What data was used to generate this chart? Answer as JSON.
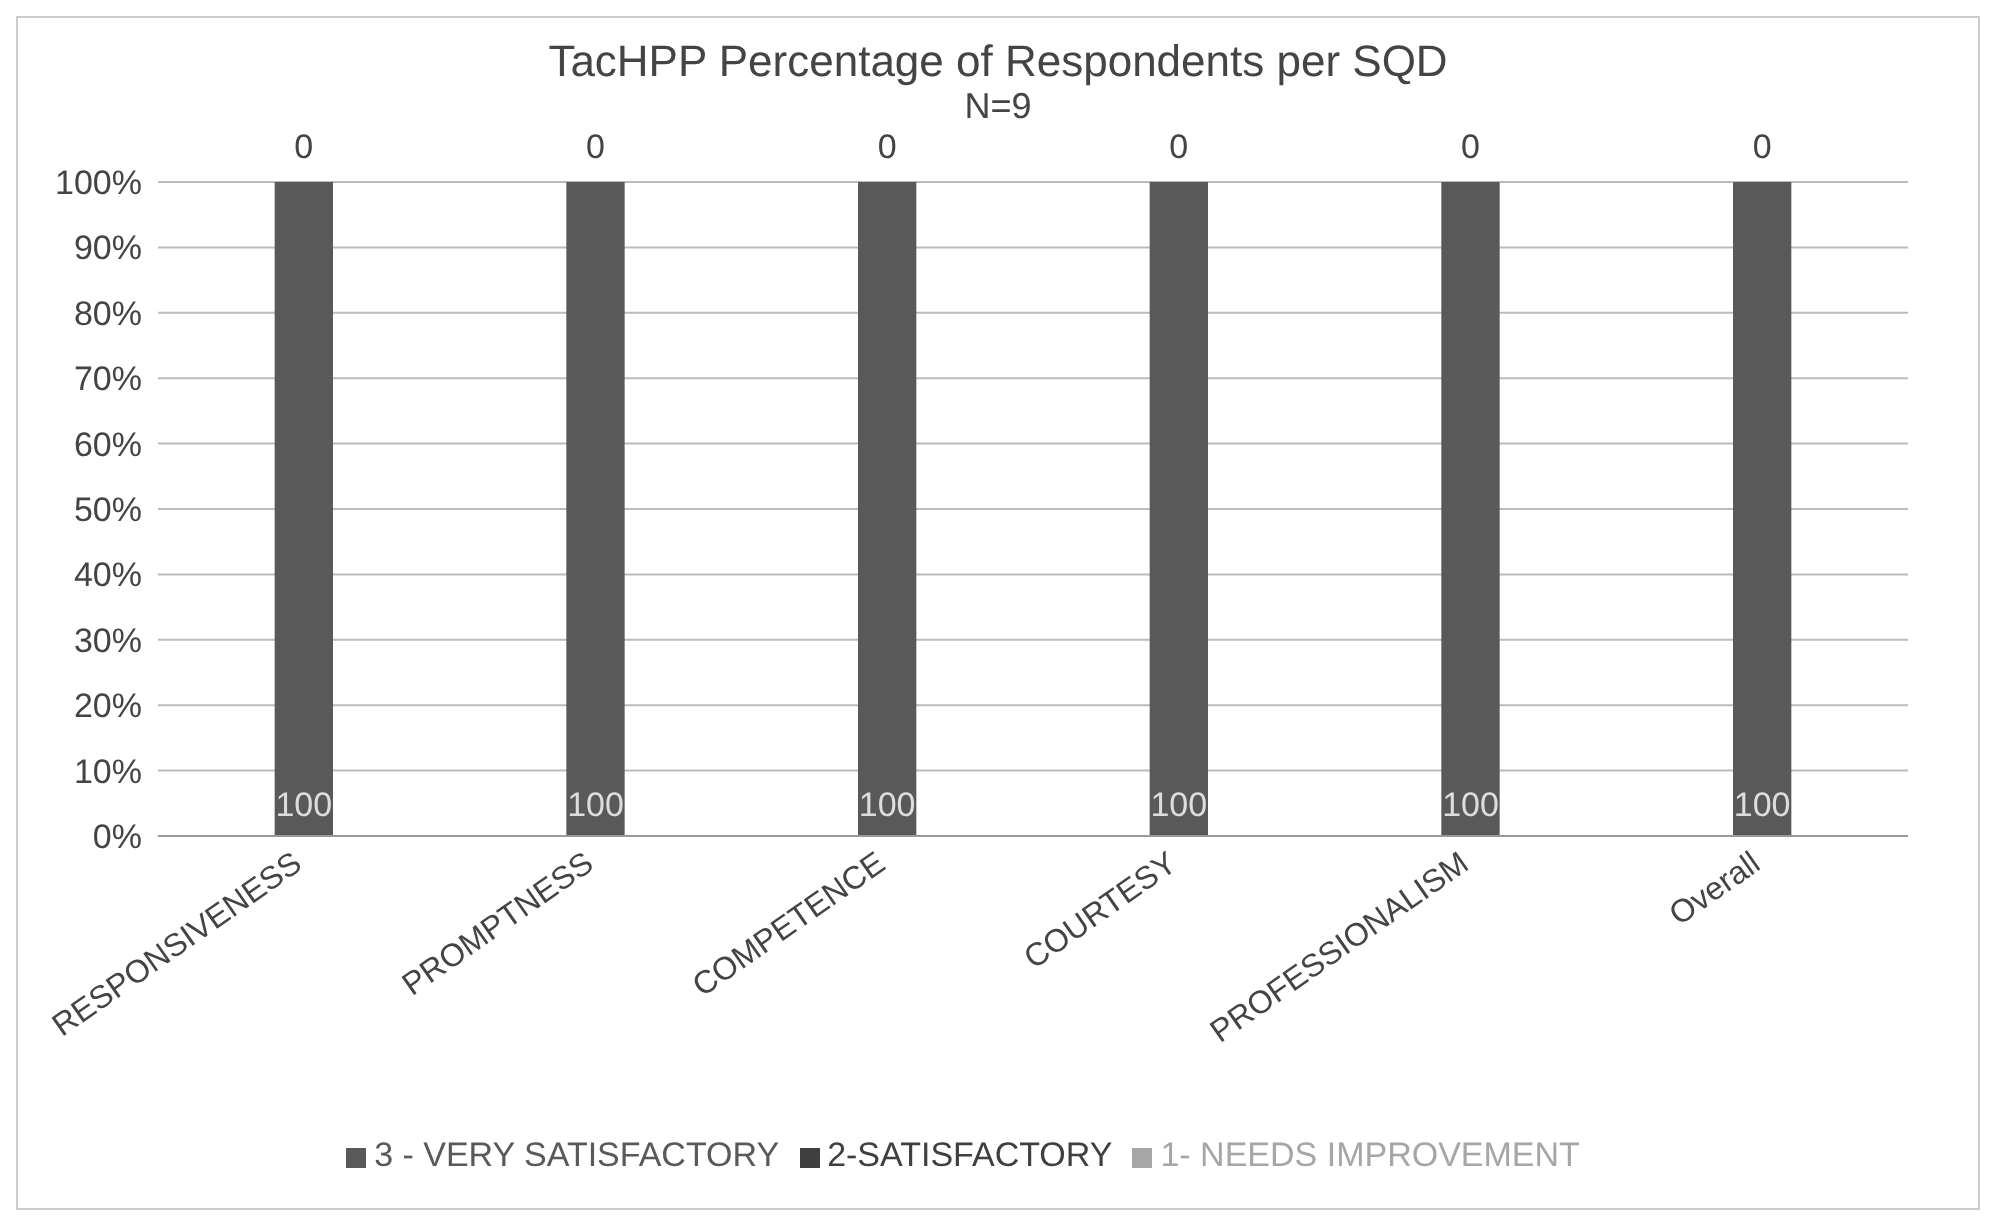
{
  "chart_data": {
    "type": "bar",
    "title": "TacHPP Percentage of Respondents per SQD",
    "subtitle": "N=9",
    "categories": [
      "RESPONSIVENESS",
      "PROMPTNESS",
      "COMPETENCE",
      "COURTESY",
      "PROFESSIONALISM",
      "Overall"
    ],
    "stacked": true,
    "series": [
      {
        "name": "3 - VERY SATISFACTORY",
        "color": "#595959",
        "values": [
          100,
          100,
          100,
          100,
          100,
          100
        ],
        "value_labels": [
          "100",
          "100",
          "100",
          "100",
          "100",
          "100"
        ]
      },
      {
        "name": "2-SATISFACTORY",
        "color": "#3f3f3f",
        "values": [
          0,
          0,
          0,
          0,
          0,
          0
        ],
        "value_labels": [
          "0",
          "0",
          "0",
          "0",
          "0",
          "0"
        ]
      },
      {
        "name": "1- NEEDS IMPROVEMENT",
        "color": "#a6a6a6",
        "values": [
          0,
          0,
          0,
          0,
          0,
          0
        ]
      }
    ],
    "ylim": [
      0,
      100
    ],
    "yticks": [
      {
        "value": 0,
        "label": "0%"
      },
      {
        "value": 10,
        "label": "10%"
      },
      {
        "value": 20,
        "label": "20%"
      },
      {
        "value": 30,
        "label": "30%"
      },
      {
        "value": 40,
        "label": "40%"
      },
      {
        "value": 50,
        "label": "50%"
      },
      {
        "value": 60,
        "label": "60%"
      },
      {
        "value": 70,
        "label": "70%"
      },
      {
        "value": 80,
        "label": "80%"
      },
      {
        "value": 90,
        "label": "90%"
      },
      {
        "value": 100,
        "label": "100%"
      }
    ],
    "grid": "y",
    "legend": "bottom"
  }
}
